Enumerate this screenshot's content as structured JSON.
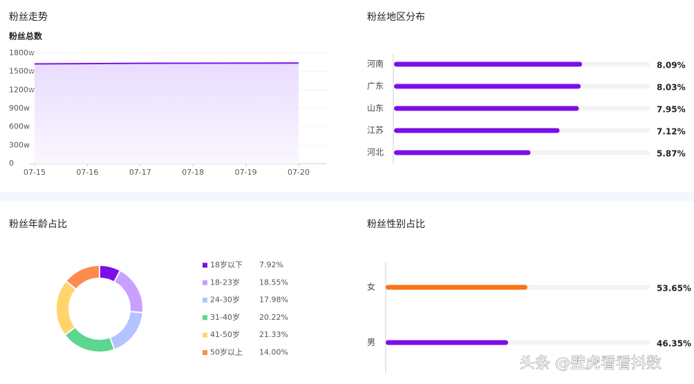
{
  "chart_data": [
    {
      "type": "line",
      "title": "粉丝走势",
      "subtitle": "粉丝总数",
      "categories": [
        "07-15",
        "07-16",
        "07-17",
        "07-18",
        "07-19",
        "07-20"
      ],
      "values": [
        1625,
        1630,
        1635,
        1637,
        1638,
        1640
      ],
      "color": "#7b0fe8",
      "ylim": [
        0,
        1800
      ],
      "yticks": [
        0,
        {
          "value": 300,
          "label": "300w"
        },
        {
          "value": 600,
          "label": "600w"
        },
        {
          "value": 900,
          "label": "900w"
        },
        {
          "value": 1200,
          "label": "1200w"
        },
        {
          "value": 1500,
          "label": "1500w"
        },
        {
          "value": 1800,
          "label": "1800w"
        }
      ],
      "grid": true
    },
    {
      "type": "hbar",
      "title": "粉丝地区分布",
      "categories": [
        "河南",
        "广东",
        "山东",
        "江苏",
        "河北"
      ],
      "values": [
        8.09,
        8.03,
        7.95,
        7.12,
        5.87
      ],
      "value_labels": [
        "8.09%",
        "8.03%",
        "7.95%",
        "7.12%",
        "5.87%"
      ],
      "color": "#7b0fe8",
      "xlim": [
        0,
        11
      ]
    },
    {
      "type": "pie",
      "title": "粉丝年龄占比",
      "categories": [
        "18岁以下",
        "18-23岁",
        "24-30岁",
        "31-40岁",
        "41-50岁",
        "50岁以上"
      ],
      "values": [
        7.92,
        18.55,
        17.98,
        20.22,
        21.33,
        14.0
      ],
      "value_labels": [
        "7.92%",
        "18.55%",
        "17.98%",
        "20.22%",
        "21.33%",
        "14.00%"
      ],
      "colors": [
        "#7b0fe8",
        "#c9a0ff",
        "#b3c3ff",
        "#5dd68f",
        "#ffd56b",
        "#ff8a4d"
      ]
    },
    {
      "type": "hbar",
      "title": "粉丝性别占比",
      "categories": [
        "女",
        "男"
      ],
      "values": [
        53.65,
        46.35
      ],
      "value_labels": [
        "53.65%",
        "46.35%"
      ],
      "colors": [
        "#f97316",
        "#7b0fe8"
      ],
      "xlim": [
        0,
        100
      ]
    }
  ],
  "watermark": "头条 @壁虎看看抖数"
}
